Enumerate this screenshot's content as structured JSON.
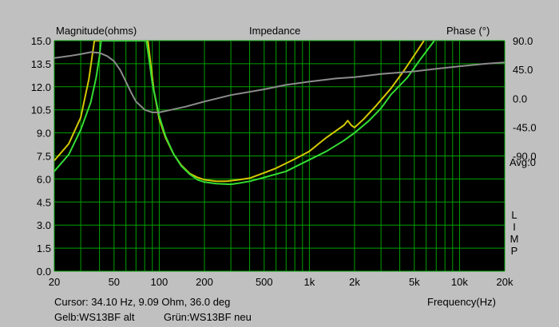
{
  "chart_data": {
    "type": "line",
    "title": "Impedance",
    "ylabel_left": "Magnitude(ohms)",
    "ylabel_right": "Phase (°)",
    "xlabel": "Frequency(Hz)",
    "avg_label": "Avg:0",
    "lim_letters": [
      "L",
      "I",
      "M",
      "P"
    ],
    "x_scale": "log",
    "xlim": [
      20,
      20000
    ],
    "ylim": [
      0,
      15
    ],
    "ylim_right": [
      -270,
      90
    ],
    "grid": true,
    "x_tick_labels": [
      {
        "value": 20,
        "label": "20"
      },
      {
        "value": 50,
        "label": "50"
      },
      {
        "value": 100,
        "label": "100"
      },
      {
        "value": 200,
        "label": "200"
      },
      {
        "value": 500,
        "label": "500"
      },
      {
        "value": 1000,
        "label": "1k"
      },
      {
        "value": 2000,
        "label": "2k"
      },
      {
        "value": 5000,
        "label": "5k"
      },
      {
        "value": 10000,
        "label": "10k"
      },
      {
        "value": 20000,
        "label": "20k"
      }
    ],
    "y_ticks": [
      "0.0",
      "1.5",
      "3.0",
      "4.5",
      "6.0",
      "7.5",
      "9.0",
      "10.5",
      "12.0",
      "13.5",
      "15.0"
    ],
    "y_right_ticks": [
      {
        "value": 90,
        "label": "90.0"
      },
      {
        "value": 45,
        "label": "45.0"
      },
      {
        "value": 0,
        "label": "0.0"
      },
      {
        "value": -45,
        "label": "-45.0"
      },
      {
        "value": -90,
        "label": "-90.0"
      }
    ],
    "colors": {
      "grid": "#00a000",
      "yellow": "#d4c800",
      "green": "#33dd33",
      "gray": "#8c8c8c",
      "background": "#000000"
    },
    "series": [
      {
        "name": "WS13BF alt",
        "color": "#d4c800",
        "axis": "left",
        "points": [
          [
            20,
            7.2
          ],
          [
            25,
            8.3
          ],
          [
            30,
            10.0
          ],
          [
            34,
            12.5
          ],
          [
            36,
            14.2
          ],
          [
            37,
            15.0
          ],
          [
            84,
            15.0
          ],
          [
            87,
            13.8
          ],
          [
            92,
            11.8
          ],
          [
            100,
            9.9
          ],
          [
            110,
            8.7
          ],
          [
            125,
            7.6
          ],
          [
            140,
            6.9
          ],
          [
            160,
            6.35
          ],
          [
            180,
            6.1
          ],
          [
            200,
            5.95
          ],
          [
            240,
            5.85
          ],
          [
            280,
            5.85
          ],
          [
            340,
            5.95
          ],
          [
            400,
            6.05
          ],
          [
            500,
            6.4
          ],
          [
            600,
            6.7
          ],
          [
            800,
            7.3
          ],
          [
            1000,
            7.8
          ],
          [
            1300,
            8.7
          ],
          [
            1700,
            9.5
          ],
          [
            1800,
            9.8
          ],
          [
            1900,
            9.5
          ],
          [
            2000,
            9.35
          ],
          [
            2300,
            9.9
          ],
          [
            2800,
            10.8
          ],
          [
            3500,
            11.9
          ],
          [
            4300,
            13.1
          ],
          [
            5200,
            14.3
          ],
          [
            5800,
            15.0
          ]
        ]
      },
      {
        "name": "WS13BF neu",
        "color": "#33dd33",
        "axis": "left",
        "points": [
          [
            20,
            6.5
          ],
          [
            25,
            7.6
          ],
          [
            30,
            9.2
          ],
          [
            35,
            11.0
          ],
          [
            38,
            12.6
          ],
          [
            40,
            14.0
          ],
          [
            41,
            15.0
          ],
          [
            82,
            15.0
          ],
          [
            85,
            14.0
          ],
          [
            90,
            12.2
          ],
          [
            100,
            10.1
          ],
          [
            110,
            8.8
          ],
          [
            125,
            7.6
          ],
          [
            140,
            6.85
          ],
          [
            160,
            6.3
          ],
          [
            180,
            5.95
          ],
          [
            200,
            5.8
          ],
          [
            240,
            5.7
          ],
          [
            300,
            5.65
          ],
          [
            350,
            5.75
          ],
          [
            400,
            5.85
          ],
          [
            500,
            6.1
          ],
          [
            700,
            6.5
          ],
          [
            1000,
            7.25
          ],
          [
            1300,
            7.8
          ],
          [
            1700,
            8.5
          ],
          [
            2000,
            9.0
          ],
          [
            2500,
            9.8
          ],
          [
            3000,
            10.6
          ],
          [
            3500,
            11.5
          ],
          [
            4500,
            12.6
          ],
          [
            5500,
            13.8
          ],
          [
            6800,
            15.0
          ]
        ]
      },
      {
        "name": "Phase",
        "color": "#8c8c8c",
        "axis": "right",
        "points": [
          [
            20,
            63
          ],
          [
            25,
            66
          ],
          [
            30,
            69
          ],
          [
            35,
            72
          ],
          [
            40,
            71
          ],
          [
            45,
            66
          ],
          [
            50,
            58
          ],
          [
            55,
            44
          ],
          [
            60,
            26
          ],
          [
            65,
            9
          ],
          [
            70,
            -5
          ],
          [
            80,
            -18
          ],
          [
            90,
            -22
          ],
          [
            100,
            -22
          ],
          [
            120,
            -18
          ],
          [
            150,
            -13
          ],
          [
            200,
            -5
          ],
          [
            300,
            5
          ],
          [
            500,
            14
          ],
          [
            700,
            21
          ],
          [
            1000,
            26
          ],
          [
            1500,
            31
          ],
          [
            2000,
            33
          ],
          [
            3000,
            38
          ],
          [
            5000,
            42
          ],
          [
            7000,
            46
          ],
          [
            10000,
            50
          ],
          [
            15000,
            54
          ],
          [
            20000,
            56
          ]
        ]
      }
    ]
  },
  "footer": {
    "cursor": "Cursor: 34.10 Hz, 9.09 Ohm, 36.0 deg",
    "legend_yellow": "Gelb:WS13BF alt",
    "legend_green": "Grün:WS13BF neu"
  }
}
